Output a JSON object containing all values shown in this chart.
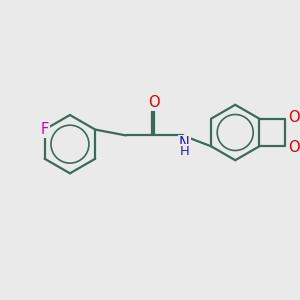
{
  "bg_color": "#eaeaea",
  "bond_color": "#3a6b5a",
  "bond_width": 1.6,
  "atom_colors": {
    "F": "#cc00cc",
    "O": "#dd0000",
    "N": "#2222cc",
    "C": "#3a6b5a"
  },
  "font_size": 10.5,
  "fig_size": [
    3.0,
    3.0
  ],
  "dpi": 100,
  "inner_circle_scale": 0.65
}
